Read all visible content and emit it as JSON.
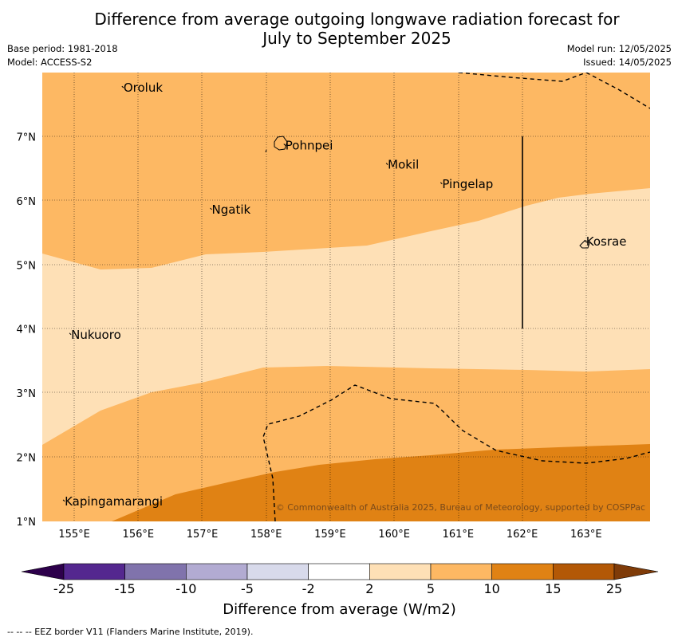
{
  "title_line1": "Difference from average outgoing longwave radiation forecast for",
  "title_line2": "July to September 2025",
  "base_period": "Base period: 1981-2018",
  "model": "Model: ACCESS-S2",
  "model_run": "Model run: 12/05/2025",
  "issued": "Issued: 14/05/2025",
  "map": {
    "lon_range": [
      154.5,
      164.0
    ],
    "lat_range": [
      1.0,
      8.0
    ],
    "lon_ticks": [
      "155°E",
      "156°E",
      "157°E",
      "158°E",
      "159°E",
      "160°E",
      "161°E",
      "162°E",
      "163°E"
    ],
    "lat_ticks": [
      "1°N",
      "2°N",
      "3°N",
      "4°N",
      "5°N",
      "6°N",
      "7°N"
    ],
    "places": [
      {
        "name": "Oroluk",
        "lon": 155.77,
        "lat": 7.7
      },
      {
        "name": "Pohnpei",
        "lon": 158.3,
        "lat": 6.8
      },
      {
        "name": "Mokil",
        "lon": 159.9,
        "lat": 6.5
      },
      {
        "name": "Pingelap",
        "lon": 160.75,
        "lat": 6.2
      },
      {
        "name": "Ngatik",
        "lon": 157.15,
        "lat": 5.8
      },
      {
        "name": "Kosrae",
        "lon": 163.0,
        "lat": 5.3
      },
      {
        "name": "Nukuoro",
        "lon": 154.95,
        "lat": 3.85
      },
      {
        "name": "Kapingamarangi",
        "lon": 154.85,
        "lat": 1.25
      }
    ],
    "credit": "© Commonwealth of Australia 2025, Bureau of Meteorology, supported by COSPPac"
  },
  "legend": {
    "labels": [
      "-25",
      "-15",
      "-10",
      "-5",
      "-2",
      "2",
      "5",
      "10",
      "15",
      "25"
    ],
    "colors": [
      "#54278f",
      "#8073ac",
      "#b2abd2",
      "#d8daeb",
      "#ffffff",
      "#fee0b6",
      "#fdb863",
      "#e08214",
      "#b35806"
    ],
    "under_color": "#2d004b",
    "over_color": "#7f3b08",
    "title": "Difference from average (W/m2)"
  },
  "footer": "--  --  -- EEZ border V11 (Flanders Marine Institute, 2019)."
}
